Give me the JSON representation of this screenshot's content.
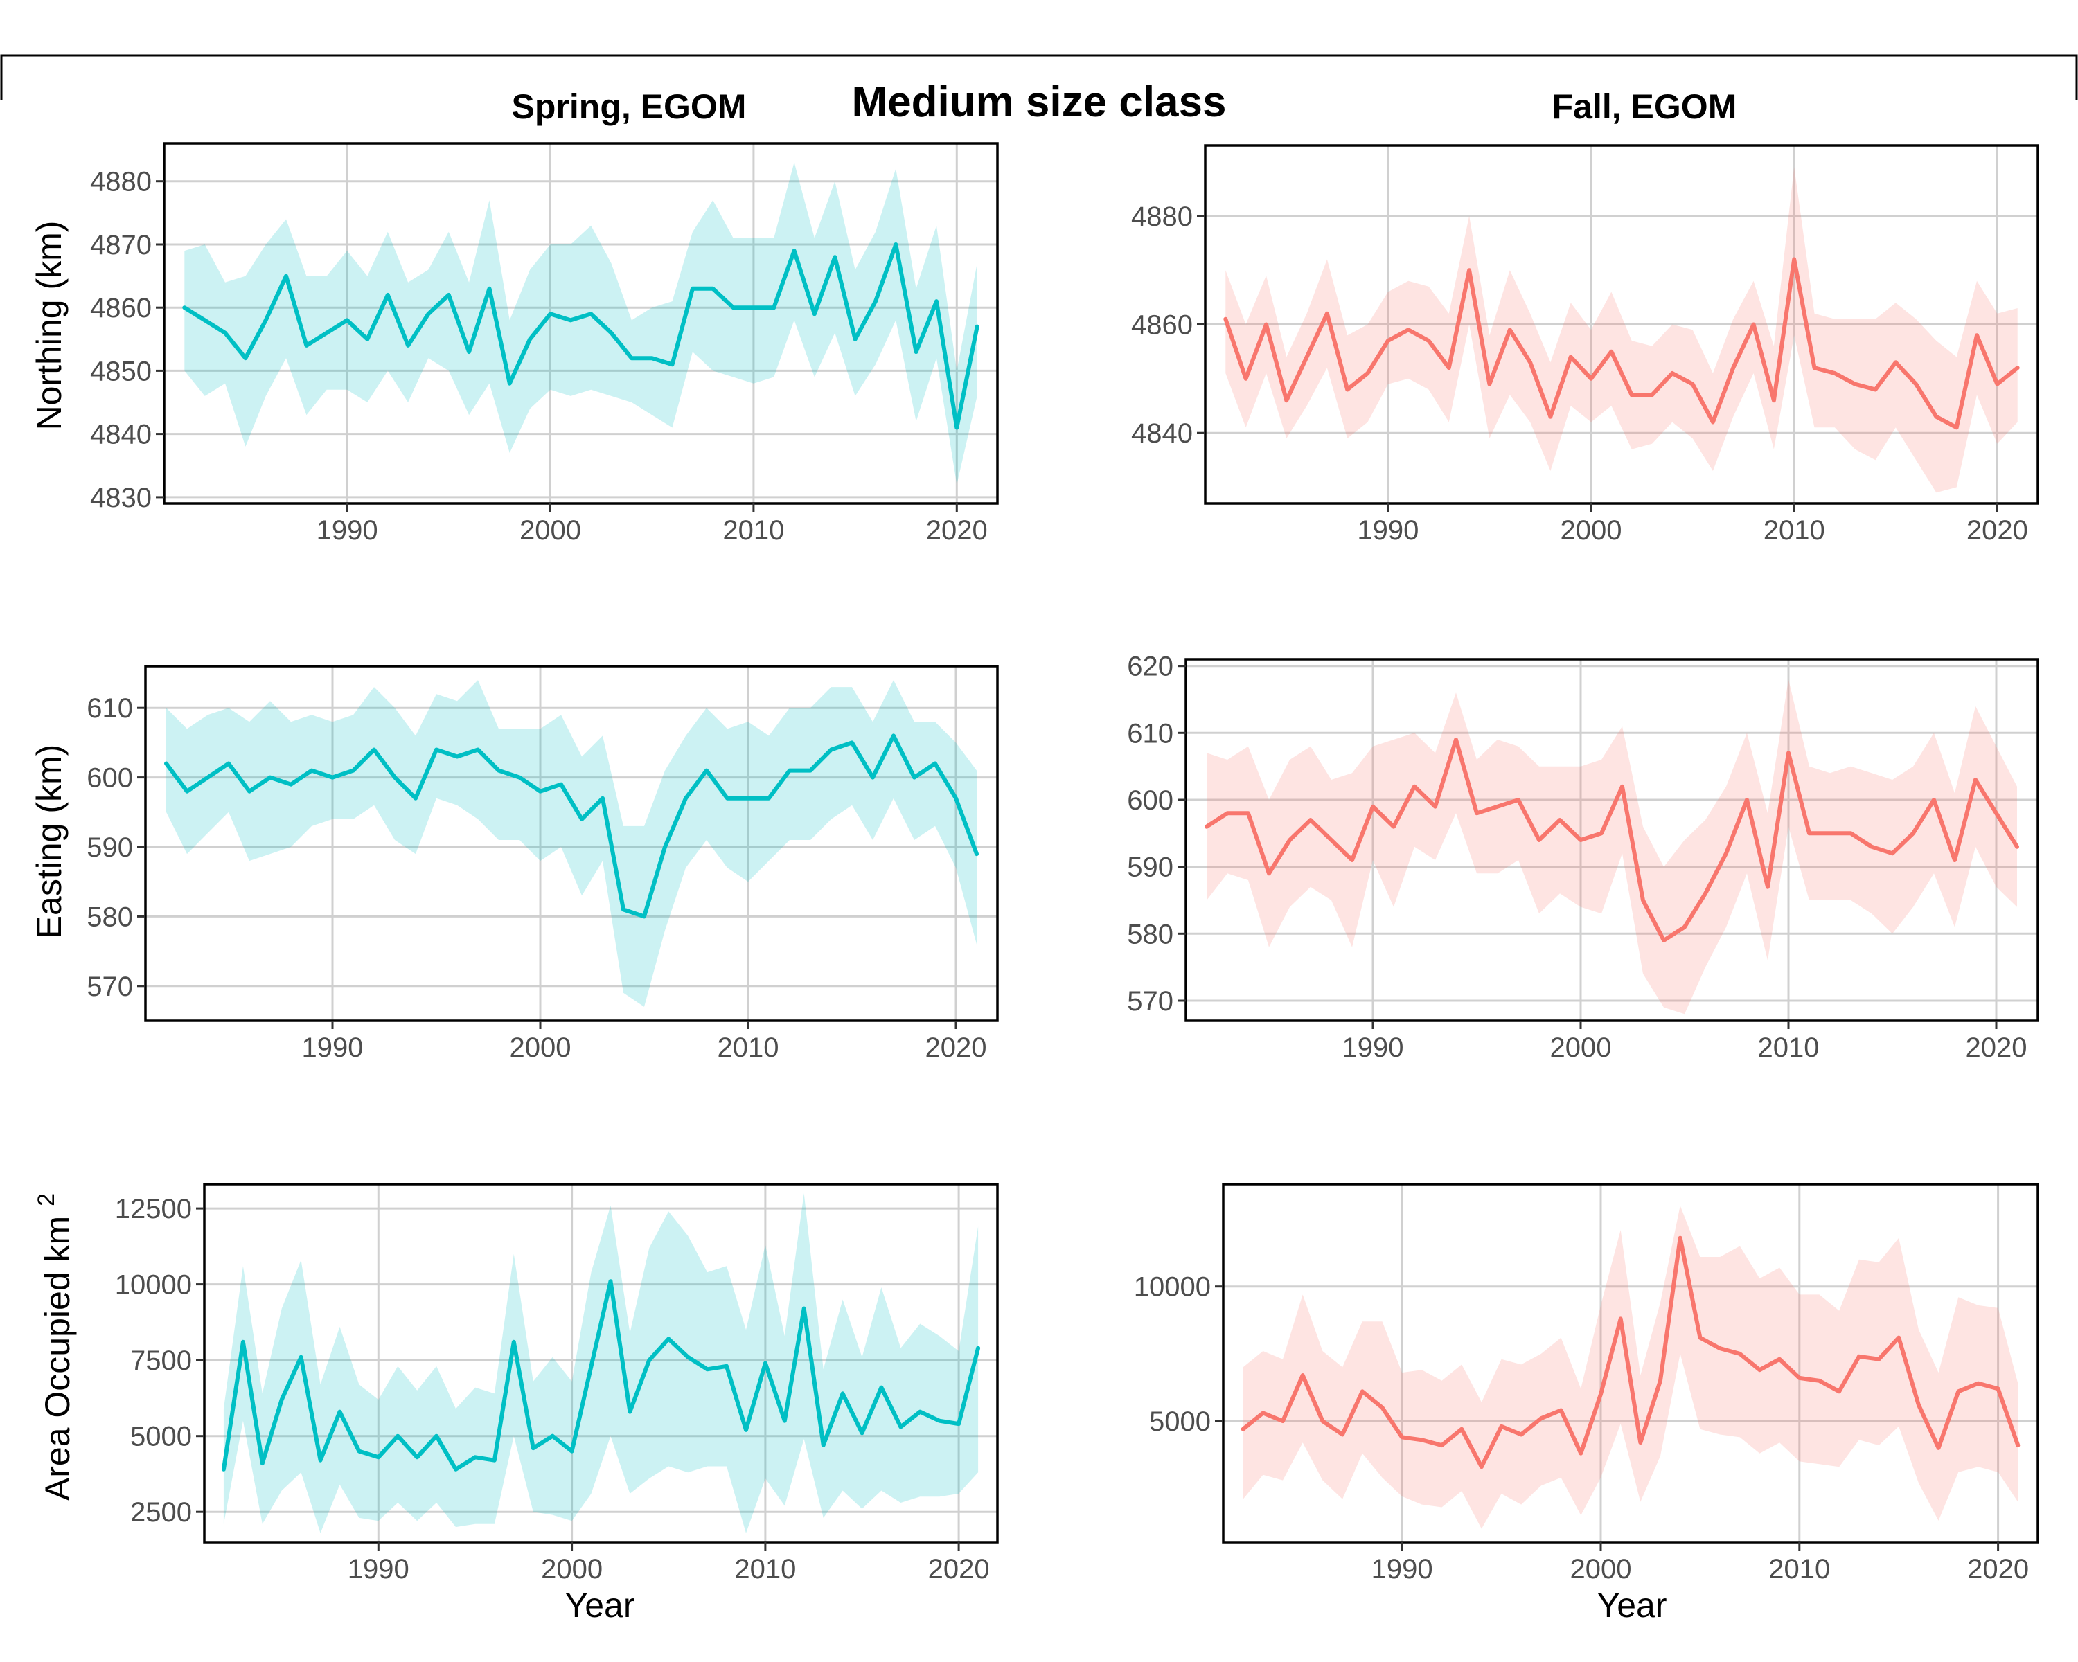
{
  "figure": {
    "title": "Medium size class",
    "columns": [
      "Spring, EGOM",
      "Fall, EGOM"
    ],
    "ylabels": [
      "Northing (km)",
      "Easting (km)",
      "Area Occupied km"
    ],
    "ylabel_superscript": "2",
    "xlabel": "Year",
    "colors": {
      "spring": "#00BFC4",
      "fall": "#F8766D"
    }
  },
  "chart_data": [
    {
      "type": "line",
      "panel": "spring-northing",
      "title": "Spring, EGOM",
      "ylabel": "Northing (km)",
      "xlabel": "",
      "xlim": [
        1981,
        2022
      ],
      "ylim": [
        4829,
        4886
      ],
      "xticks": [
        1990,
        2000,
        2010,
        2020
      ],
      "yticks": [
        4830,
        4840,
        4850,
        4860,
        4870,
        4880
      ],
      "grid": true,
      "color": "#00BFC4",
      "x": [
        1982,
        1983,
        1984,
        1985,
        1986,
        1987,
        1988,
        1989,
        1990,
        1991,
        1992,
        1993,
        1994,
        1995,
        1996,
        1997,
        1998,
        1999,
        2000,
        2001,
        2002,
        2003,
        2004,
        2005,
        2006,
        2007,
        2008,
        2009,
        2010,
        2011,
        2012,
        2013,
        2014,
        2015,
        2016,
        2017,
        2018,
        2019,
        2020,
        2021
      ],
      "y": [
        4860,
        4858,
        4856,
        4852,
        4858,
        4865,
        4854,
        4856,
        4858,
        4855,
        4862,
        4854,
        4859,
        4862,
        4853,
        4863,
        4848,
        4855,
        4859,
        4858,
        4859,
        4856,
        4852,
        4852,
        4851,
        4863,
        4863,
        4860,
        4860,
        4860,
        4869,
        4859,
        4868,
        4855,
        4861,
        4870,
        4853,
        4861,
        4841,
        4857
      ],
      "ci_low": [
        4850,
        4846,
        4848,
        4838,
        4846,
        4852,
        4843,
        4847,
        4847,
        4845,
        4850,
        4845,
        4852,
        4850,
        4843,
        4848,
        4837,
        4844,
        4847,
        4846,
        4847,
        4846,
        4845,
        4843,
        4841,
        4853,
        4850,
        4849,
        4848,
        4849,
        4858,
        4849,
        4856,
        4846,
        4851,
        4858,
        4842,
        4852,
        4832,
        4846
      ],
      "ci_high": [
        4869,
        4870,
        4864,
        4865,
        4870,
        4874,
        4865,
        4865,
        4869,
        4865,
        4872,
        4864,
        4866,
        4872,
        4864,
        4877,
        4858,
        4866,
        4870,
        4870,
        4873,
        4867,
        4858,
        4860,
        4861,
        4872,
        4877,
        4871,
        4871,
        4871,
        4883,
        4871,
        4880,
        4866,
        4872,
        4882,
        4863,
        4873,
        4850,
        4867
      ]
    },
    {
      "type": "line",
      "panel": "fall-northing",
      "title": "Fall, EGOM",
      "ylabel": "",
      "xlabel": "",
      "xlim": [
        1981,
        2022
      ],
      "ylim": [
        4827,
        4893
      ],
      "xticks": [
        1990,
        2000,
        2010,
        2020
      ],
      "yticks": [
        4840,
        4860,
        4880
      ],
      "grid": true,
      "color": "#F8766D",
      "x": [
        1982,
        1983,
        1984,
        1985,
        1986,
        1987,
        1988,
        1989,
        1990,
        1991,
        1992,
        1993,
        1994,
        1995,
        1996,
        1997,
        1998,
        1999,
        2000,
        2001,
        2002,
        2003,
        2004,
        2005,
        2006,
        2007,
        2008,
        2009,
        2010,
        2011,
        2012,
        2013,
        2014,
        2015,
        2016,
        2017,
        2018,
        2019,
        2020,
        2021
      ],
      "y": [
        4861,
        4850,
        4860,
        4846,
        4854,
        4862,
        4848,
        4851,
        4857,
        4859,
        4857,
        4852,
        4870,
        4849,
        4859,
        4853,
        4843,
        4854,
        4850,
        4855,
        4847,
        4847,
        4851,
        4849,
        4842,
        4852,
        4860,
        4846,
        4872,
        4852,
        4851,
        4849,
        4848,
        4853,
        4849,
        4843,
        4841,
        4858,
        4849,
        4852
      ],
      "ci_low": [
        4851,
        4841,
        4851,
        4839,
        4845,
        4852,
        4839,
        4842,
        4849,
        4850,
        4848,
        4842,
        4860,
        4839,
        4847,
        4842,
        4833,
        4845,
        4842,
        4845,
        4837,
        4838,
        4842,
        4839,
        4833,
        4843,
        4851,
        4837,
        4858,
        4841,
        4841,
        4837,
        4835,
        4841,
        4835,
        4829,
        4830,
        4847,
        4838,
        4842
      ],
      "ci_high": [
        4870,
        4860,
        4869,
        4854,
        4862,
        4872,
        4858,
        4860,
        4866,
        4868,
        4867,
        4862,
        4880,
        4858,
        4870,
        4862,
        4853,
        4864,
        4859,
        4866,
        4857,
        4856,
        4860,
        4859,
        4851,
        4861,
        4868,
        4856,
        4889,
        4862,
        4861,
        4861,
        4861,
        4864,
        4861,
        4857,
        4854,
        4868,
        4862,
        4863
      ]
    },
    {
      "type": "line",
      "panel": "spring-easting",
      "title": "",
      "ylabel": "Easting (km)",
      "xlabel": "",
      "xlim": [
        1981,
        2022
      ],
      "ylim": [
        565,
        616
      ],
      "xticks": [
        1990,
        2000,
        2010,
        2020
      ],
      "yticks": [
        570,
        580,
        590,
        600,
        610
      ],
      "grid": true,
      "color": "#00BFC4",
      "x": [
        1982,
        1983,
        1984,
        1985,
        1986,
        1987,
        1988,
        1989,
        1990,
        1991,
        1992,
        1993,
        1994,
        1995,
        1996,
        1997,
        1998,
        1999,
        2000,
        2001,
        2002,
        2003,
        2004,
        2005,
        2006,
        2007,
        2008,
        2009,
        2010,
        2011,
        2012,
        2013,
        2014,
        2015,
        2016,
        2017,
        2018,
        2019,
        2020,
        2021
      ],
      "y": [
        602,
        598,
        600,
        602,
        598,
        600,
        599,
        601,
        600,
        601,
        604,
        600,
        597,
        604,
        603,
        604,
        601,
        600,
        598,
        599,
        594,
        597,
        581,
        580,
        590,
        597,
        601,
        597,
        597,
        597,
        601,
        601,
        604,
        605,
        600,
        606,
        600,
        602,
        597,
        589
      ],
      "ci_low": [
        595,
        589,
        592,
        595,
        588,
        589,
        590,
        593,
        594,
        594,
        596,
        591,
        589,
        597,
        596,
        594,
        591,
        591,
        588,
        590,
        583,
        588,
        569,
        567,
        578,
        587,
        591,
        587,
        585,
        588,
        591,
        591,
        594,
        596,
        591,
        597,
        591,
        593,
        587,
        576
      ],
      "ci_high": [
        610,
        607,
        609,
        610,
        608,
        611,
        608,
        609,
        608,
        609,
        613,
        610,
        606,
        612,
        611,
        614,
        607,
        607,
        607,
        609,
        603,
        606,
        593,
        593,
        601,
        606,
        610,
        607,
        608,
        606,
        610,
        610,
        613,
        613,
        608,
        614,
        608,
        608,
        605,
        601
      ]
    },
    {
      "type": "line",
      "panel": "fall-easting",
      "title": "",
      "ylabel": "",
      "xlabel": "",
      "xlim": [
        1981,
        2022
      ],
      "ylim": [
        567,
        621
      ],
      "xticks": [
        1990,
        2000,
        2010,
        2020
      ],
      "yticks": [
        570,
        580,
        590,
        600,
        610,
        620
      ],
      "grid": true,
      "color": "#F8766D",
      "x": [
        1982,
        1983,
        1984,
        1985,
        1986,
        1987,
        1988,
        1989,
        1990,
        1991,
        1992,
        1993,
        1994,
        1995,
        1996,
        1997,
        1998,
        1999,
        2000,
        2001,
        2002,
        2003,
        2004,
        2005,
        2006,
        2007,
        2008,
        2009,
        2010,
        2011,
        2012,
        2013,
        2014,
        2015,
        2016,
        2017,
        2018,
        2019,
        2020,
        2021
      ],
      "y": [
        596,
        598,
        598,
        589,
        594,
        597,
        594,
        591,
        599,
        596,
        602,
        599,
        609,
        598,
        599,
        600,
        594,
        597,
        594,
        595,
        602,
        585,
        579,
        581,
        586,
        592,
        600,
        587,
        607,
        595,
        595,
        595,
        593,
        592,
        595,
        600,
        591,
        603,
        598,
        593
      ],
      "ci_low": [
        585,
        589,
        588,
        578,
        584,
        587,
        585,
        578,
        591,
        584,
        593,
        591,
        598,
        589,
        589,
        591,
        583,
        586,
        584,
        583,
        592,
        574,
        569,
        568,
        575,
        581,
        589,
        576,
        596,
        585,
        585,
        585,
        583,
        580,
        584,
        589,
        581,
        593,
        587,
        584
      ],
      "ci_high": [
        607,
        606,
        608,
        600,
        606,
        608,
        603,
        604,
        608,
        609,
        610,
        607,
        616,
        606,
        609,
        608,
        605,
        605,
        605,
        606,
        611,
        596,
        590,
        594,
        597,
        602,
        610,
        598,
        618,
        605,
        604,
        605,
        604,
        603,
        605,
        610,
        601,
        614,
        608,
        602
      ]
    },
    {
      "type": "line",
      "panel": "spring-area",
      "title": "",
      "ylabel": "Area Occupied km2",
      "xlabel": "Year",
      "xlim": [
        1981,
        2022
      ],
      "ylim": [
        1500,
        13300
      ],
      "xticks": [
        1990,
        2000,
        2010,
        2020
      ],
      "yticks": [
        2500,
        5000,
        7500,
        10000,
        12500
      ],
      "grid": true,
      "color": "#00BFC4",
      "x": [
        1982,
        1983,
        1984,
        1985,
        1986,
        1987,
        1988,
        1989,
        1990,
        1991,
        1992,
        1993,
        1994,
        1995,
        1996,
        1997,
        1998,
        1999,
        2000,
        2001,
        2002,
        2003,
        2004,
        2005,
        2006,
        2007,
        2008,
        2009,
        2010,
        2011,
        2012,
        2013,
        2014,
        2015,
        2016,
        2017,
        2018,
        2019,
        2020,
        2021
      ],
      "y": [
        3900,
        8100,
        4100,
        6200,
        7600,
        4200,
        5800,
        4500,
        4300,
        5000,
        4300,
        5000,
        3900,
        4300,
        4200,
        8100,
        4600,
        5000,
        4500,
        7300,
        10100,
        5800,
        7500,
        8200,
        7600,
        7200,
        7300,
        5200,
        7400,
        5500,
        9200,
        4700,
        6400,
        5100,
        6600,
        5300,
        5800,
        5500,
        5400,
        7900
      ],
      "ci_low": [
        2100,
        5500,
        2100,
        3200,
        3800,
        1800,
        3400,
        2300,
        2200,
        2800,
        2200,
        2800,
        2000,
        2100,
        2100,
        5000,
        2500,
        2400,
        2200,
        3100,
        5000,
        3100,
        3600,
        4000,
        3800,
        4000,
        4000,
        1800,
        3600,
        2700,
        4900,
        2300,
        3200,
        2600,
        3200,
        2800,
        3000,
        3000,
        3100,
        3800
      ],
      "ci_high": [
        5900,
        10600,
        6400,
        9200,
        10800,
        6700,
        8600,
        6700,
        6200,
        7300,
        6500,
        7300,
        5900,
        6600,
        6400,
        11000,
        6800,
        7600,
        6800,
        10400,
        12600,
        8400,
        11200,
        12400,
        11600,
        10400,
        10600,
        8500,
        11300,
        8300,
        13000,
        7200,
        9500,
        7600,
        9900,
        7900,
        8700,
        8300,
        7800,
        11900
      ]
    },
    {
      "type": "line",
      "panel": "fall-area",
      "title": "",
      "ylabel": "",
      "xlabel": "Year",
      "xlim": [
        1981,
        2022
      ],
      "ylim": [
        500,
        13800
      ],
      "xticks": [
        1990,
        2000,
        2010,
        2020
      ],
      "yticks": [
        5000,
        10000
      ],
      "grid": true,
      "color": "#F8766D",
      "x": [
        1982,
        1983,
        1984,
        1985,
        1986,
        1987,
        1988,
        1989,
        1990,
        1991,
        1992,
        1993,
        1994,
        1995,
        1996,
        1997,
        1998,
        1999,
        2000,
        2001,
        2002,
        2003,
        2004,
        2005,
        2006,
        2007,
        2008,
        2009,
        2010,
        2011,
        2012,
        2013,
        2014,
        2015,
        2016,
        2017,
        2018,
        2019,
        2020,
        2021
      ],
      "y": [
        4700,
        5300,
        5000,
        6700,
        5000,
        4500,
        6100,
        5500,
        4400,
        4300,
        4100,
        4700,
        3300,
        4800,
        4500,
        5100,
        5400,
        3800,
        6000,
        8800,
        4200,
        6500,
        11800,
        8100,
        7700,
        7500,
        6900,
        7300,
        6600,
        6500,
        6100,
        7400,
        7300,
        8100,
        5600,
        4000,
        6100,
        6400,
        6200,
        4100
      ],
      "ci_low": [
        2100,
        3000,
        2800,
        4200,
        2800,
        2100,
        3800,
        2900,
        2200,
        1900,
        1800,
        2400,
        1000,
        2300,
        1900,
        2600,
        2900,
        1500,
        2900,
        4900,
        2000,
        3700,
        7500,
        4700,
        4500,
        4400,
        3800,
        4200,
        3500,
        3400,
        3300,
        4300,
        4100,
        4800,
        2700,
        1300,
        3100,
        3300,
        3100,
        2000
      ],
      "ci_high": [
        7000,
        7600,
        7300,
        9700,
        7600,
        7000,
        8700,
        8700,
        6800,
        6900,
        6500,
        7100,
        5700,
        7300,
        7100,
        7500,
        8100,
        6200,
        9300,
        12100,
        6700,
        9400,
        13000,
        11100,
        11100,
        11500,
        10300,
        10700,
        9700,
        9700,
        9100,
        11000,
        10900,
        11800,
        8400,
        6800,
        9600,
        9300,
        9200,
        6400
      ]
    }
  ]
}
